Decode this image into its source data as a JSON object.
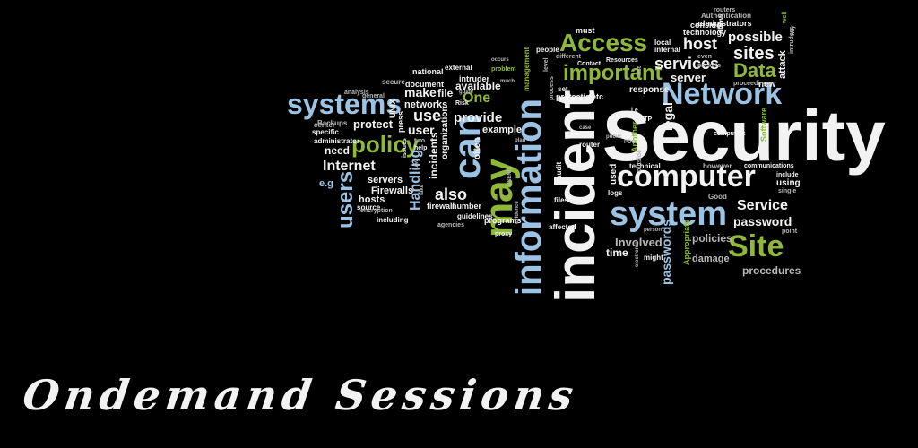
{
  "caption": "Ondemand Sessions",
  "palette": {
    "white": "#f2f2f2",
    "blue": "#9cc3e3",
    "green": "#8fb83a",
    "grey": "#b8b8b8",
    "darkgrey": "#7d7d7d"
  },
  "cloud_words": [
    "Security",
    "incident",
    "information",
    "Network",
    "computer",
    "system",
    "Access",
    "important",
    "systems",
    "Site",
    "may",
    "can",
    "users",
    "policy",
    "Internet",
    "Data",
    "sites",
    "services",
    "host",
    "possible",
    "Service",
    "password",
    "policies",
    "Involved",
    "time",
    "damage",
    "procedures",
    "passwords",
    "also",
    "provide",
    "use",
    "user",
    "One",
    "make",
    "networks",
    "protect",
    "need",
    "hosts",
    "servers",
    "Firewalls",
    "Handling",
    "incidents",
    "available",
    "file",
    "document",
    "national",
    "external",
    "intruder",
    "example",
    "often",
    "organization",
    "number",
    "firewall",
    "programs",
    "guidelines",
    "agencies",
    "including",
    "Backups",
    "administrator",
    "specific",
    "center",
    "analysis",
    "secure",
    "general",
    "source",
    "encryption",
    "press",
    "UNIX",
    "legal",
    "server",
    "response",
    "protection",
    "etc",
    "set",
    "process",
    "attack",
    "new",
    "allow",
    "technology",
    "consider",
    "administrators",
    "Authentication",
    "routers",
    "must",
    "people",
    "local",
    "internal",
    "even",
    "Resources",
    "Contact",
    "different",
    "packets",
    "intruders",
    "way",
    "well",
    "proceedings",
    "Software",
    "computers",
    "communications",
    "include",
    "single",
    "point",
    "using",
    "however",
    "technical",
    "Good",
    "outside",
    "Appropriate",
    "person",
    "might",
    "electronic",
    "affected",
    "files",
    "logs",
    "Another",
    "used",
    "audit",
    "PDC",
    "router",
    "public",
    "case",
    "FTP",
    "i.e",
    "list",
    "level",
    "much",
    "occurs",
    "problem",
    "management",
    "plan",
    "two",
    "help",
    "issues",
    "e.g",
    "Risk",
    "USENIX",
    "evidence",
    "proxy",
    "take",
    "Law",
    "guide"
  ]
}
